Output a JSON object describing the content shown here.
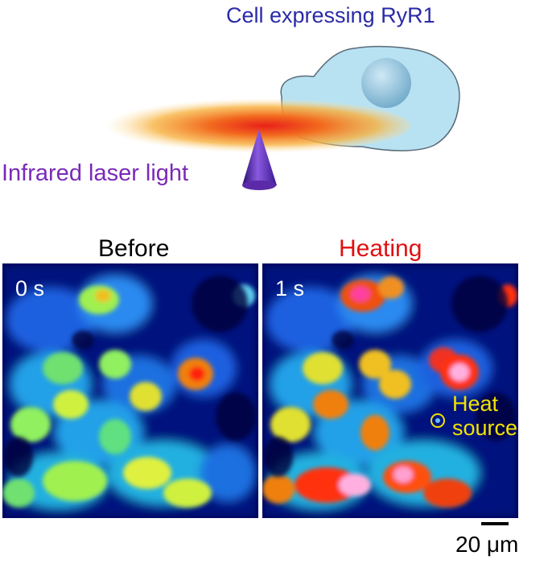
{
  "labels": {
    "cell_title": "Cell expressing RyR1",
    "laser_label": "Infrared laser light",
    "before_title": "Before",
    "heating_title": "Heating",
    "before_time": "0 s",
    "heating_time": "1 s",
    "heat_source_line1": "Heat",
    "heat_source_line2": "source",
    "scale_bar": "20 μm"
  },
  "colors": {
    "cell_title": "#2a2aa8",
    "laser_label": "#7a2ab8",
    "heating_title": "#e01010",
    "heat_source": "#f2e200",
    "cell_fill": "#b8e2f2",
    "cone": "#5a2aa8"
  }
}
